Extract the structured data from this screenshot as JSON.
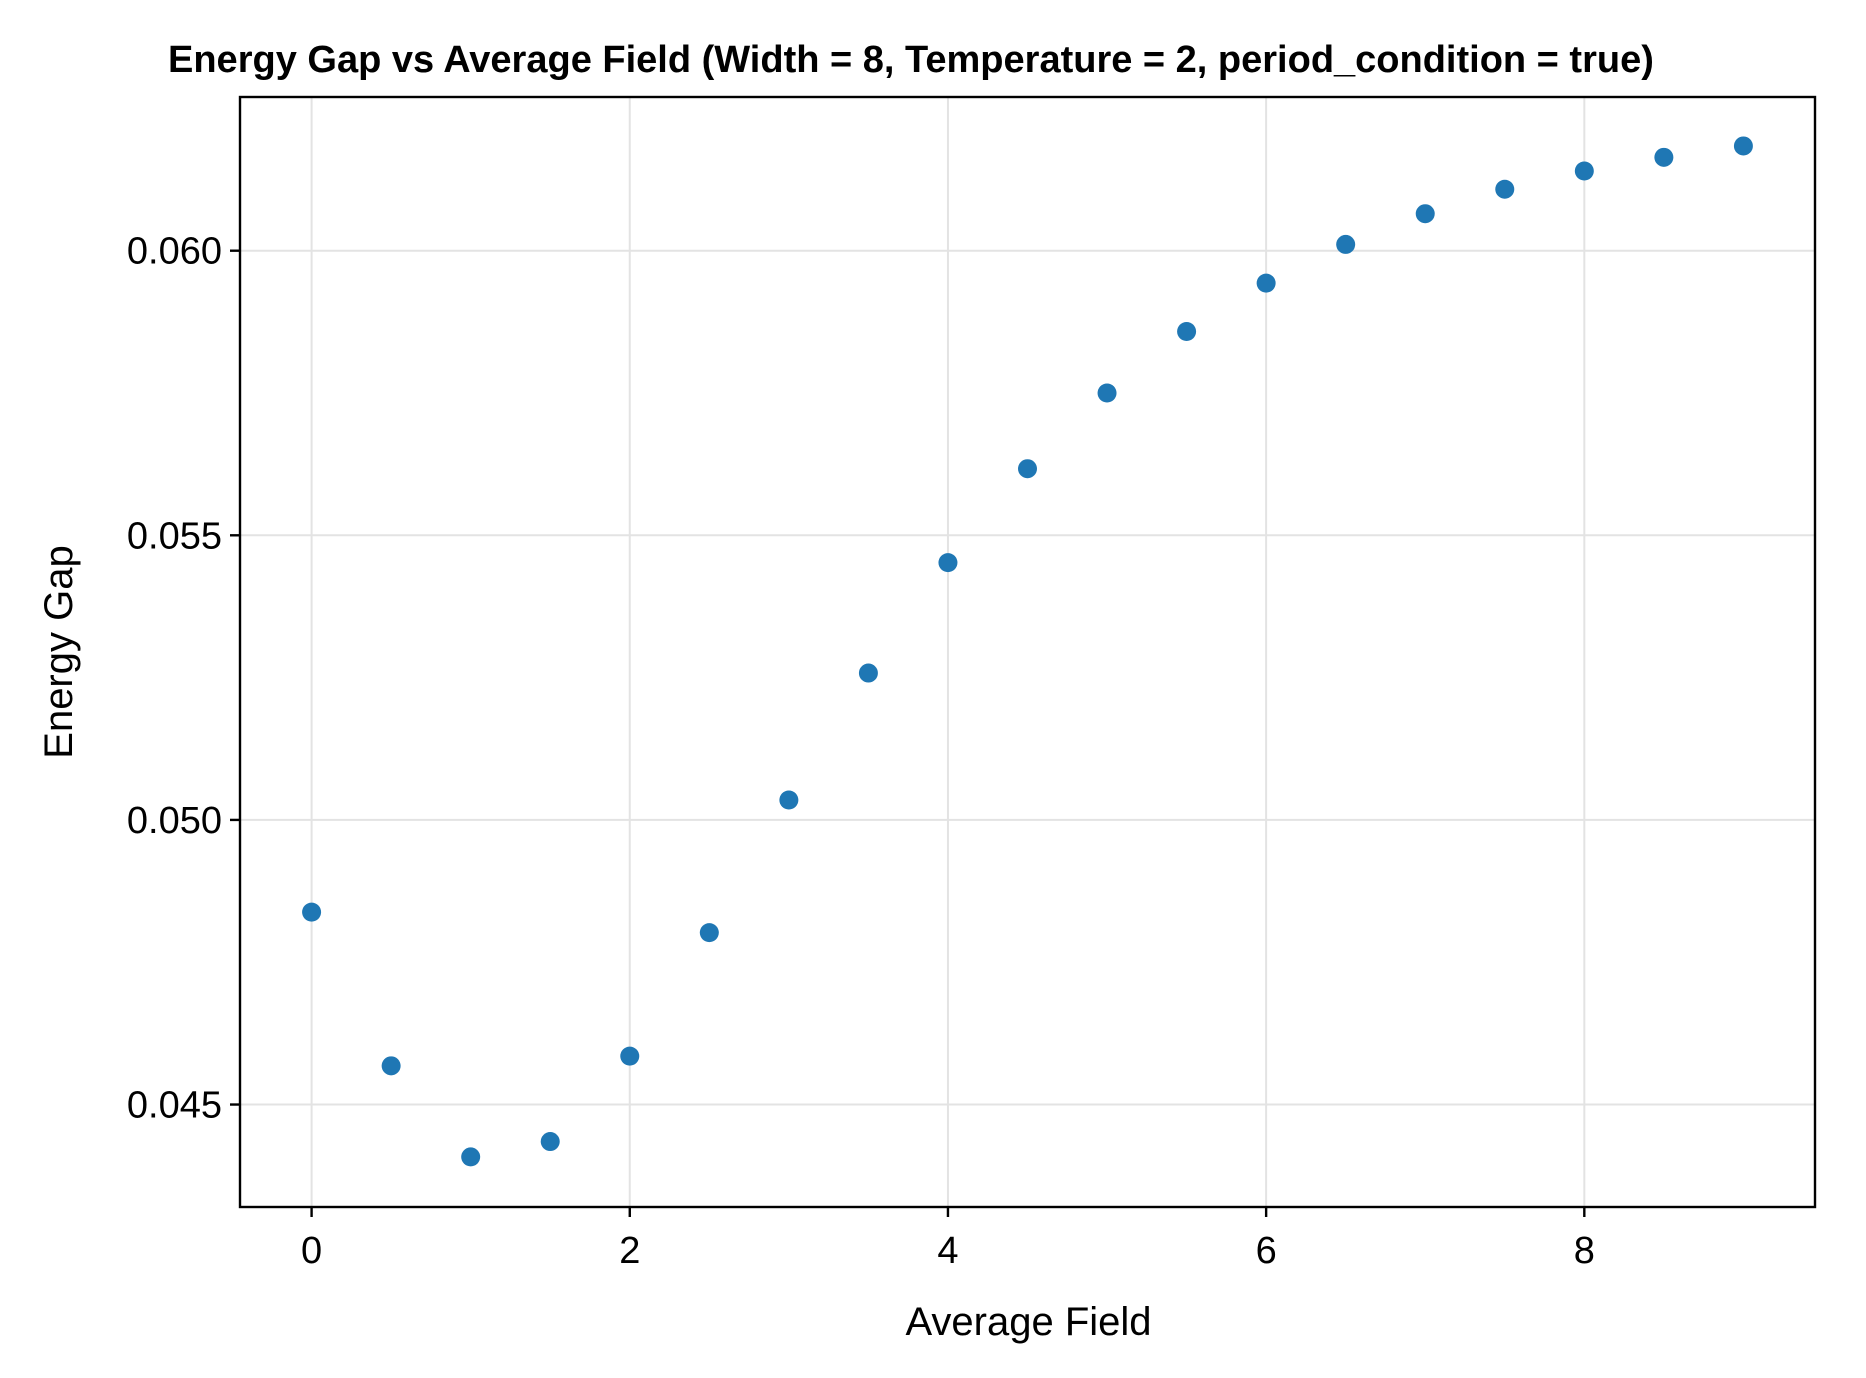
{
  "chart_data": {
    "type": "scatter",
    "title": "Energy Gap vs Average Field (Width = 8, Temperature = 2, period_condition = true)",
    "xlabel": "Average Field",
    "ylabel": "Energy Gap",
    "xlim": [
      -0.45,
      9.45
    ],
    "ylim": [
      0.0432,
      0.0627
    ],
    "x_ticks": [
      0,
      2,
      4,
      6,
      8
    ],
    "x_tick_labels": [
      "0",
      "2",
      "4",
      "6",
      "8"
    ],
    "y_ticks": [
      0.045,
      0.05,
      0.055,
      0.06
    ],
    "y_tick_labels": [
      "0.045",
      "0.050",
      "0.055",
      "0.060"
    ],
    "grid": true,
    "marker_color": "#1f77b4",
    "series": [
      {
        "x": [
          0,
          0.5,
          1,
          1.5,
          2,
          2.5,
          3,
          3.5,
          4,
          4.5,
          5,
          5.5,
          6,
          6.5,
          7,
          7.5,
          8,
          8.5,
          9
        ],
        "y": [
          0.04838,
          0.04568,
          0.04408,
          0.04435,
          0.04585,
          0.04802,
          0.05035,
          0.05258,
          0.05452,
          0.05617,
          0.0575,
          0.05858,
          0.05943,
          0.06011,
          0.06065,
          0.06108,
          0.0614,
          0.06164,
          0.06184
        ]
      }
    ]
  }
}
